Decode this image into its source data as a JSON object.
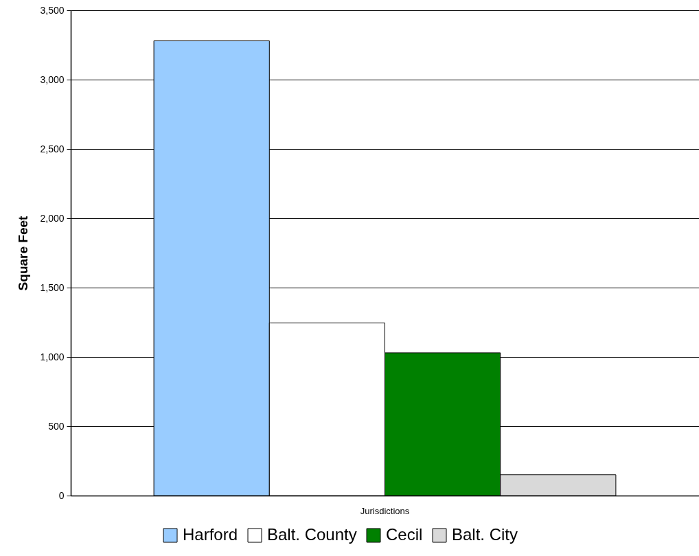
{
  "chart_data": {
    "type": "bar",
    "categories": [
      "Jurisdictions"
    ],
    "ylabel": "Square Feet",
    "series": [
      {
        "name": "Harford",
        "color": "#99ccff",
        "values": [
          3280
        ]
      },
      {
        "name": "Balt. County",
        "color": "#ffffff",
        "values": [
          1245
        ]
      },
      {
        "name": "Cecil",
        "color": "#008000",
        "values": [
          1030
        ]
      },
      {
        "name": "Balt. City",
        "color": "#d9d9d9",
        "values": [
          150
        ]
      }
    ],
    "ylim": [
      0,
      3500
    ],
    "yticks": [
      {
        "value": 0,
        "label": "0"
      },
      {
        "value": 500,
        "label": "500"
      },
      {
        "value": 1000,
        "label": "1,000"
      },
      {
        "value": 1500,
        "label": "1,500"
      },
      {
        "value": 2000,
        "label": "2,000"
      },
      {
        "value": 2500,
        "label": "2,500"
      },
      {
        "value": 3000,
        "label": "3,000"
      },
      {
        "value": 3500,
        "label": "3,500"
      }
    ],
    "grid": "y",
    "legend": "bottom"
  }
}
